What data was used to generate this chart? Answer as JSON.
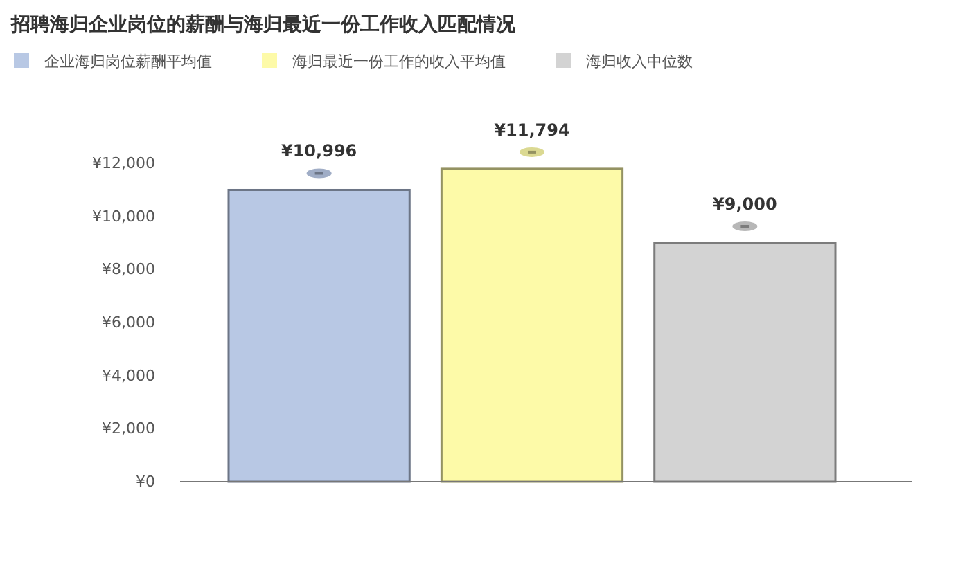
{
  "chart_data": {
    "type": "bar",
    "title": "招聘海归企业岗位的薪酬与海归最近一份工作收入匹配情况",
    "categories": [
      null,
      null,
      null
    ],
    "series": [
      {
        "name": "企业海归岗位薪酬平均值",
        "color": "#b8c8e4",
        "values": [
          10996,
          null,
          null
        ],
        "value_labels": [
          "¥10,996",
          null,
          null
        ]
      },
      {
        "name": "海归最近一份工作的收入平均值",
        "color": "#fdfaa8",
        "values": [
          null,
          11794,
          null
        ],
        "value_labels": [
          null,
          "¥11,794",
          null
        ]
      },
      {
        "name": "海归收入中位数",
        "color": "#d3d3d3",
        "values": [
          null,
          null,
          9000
        ],
        "value_labels": [
          null,
          null,
          "¥9,000"
        ]
      }
    ],
    "ylim": [
      0,
      12000
    ],
    "yticks": [
      {
        "value": 0,
        "label": "¥0"
      },
      {
        "value": 2000,
        "label": "¥2,000"
      },
      {
        "value": 4000,
        "label": "¥4,000"
      },
      {
        "value": 6000,
        "label": "¥6,000"
      },
      {
        "value": 8000,
        "label": "¥8,000"
      },
      {
        "value": 10000,
        "label": "¥10,000"
      },
      {
        "value": 12000,
        "label": "¥12,000"
      }
    ],
    "tick_labels": "y",
    "grid": false,
    "legend": "top left"
  }
}
